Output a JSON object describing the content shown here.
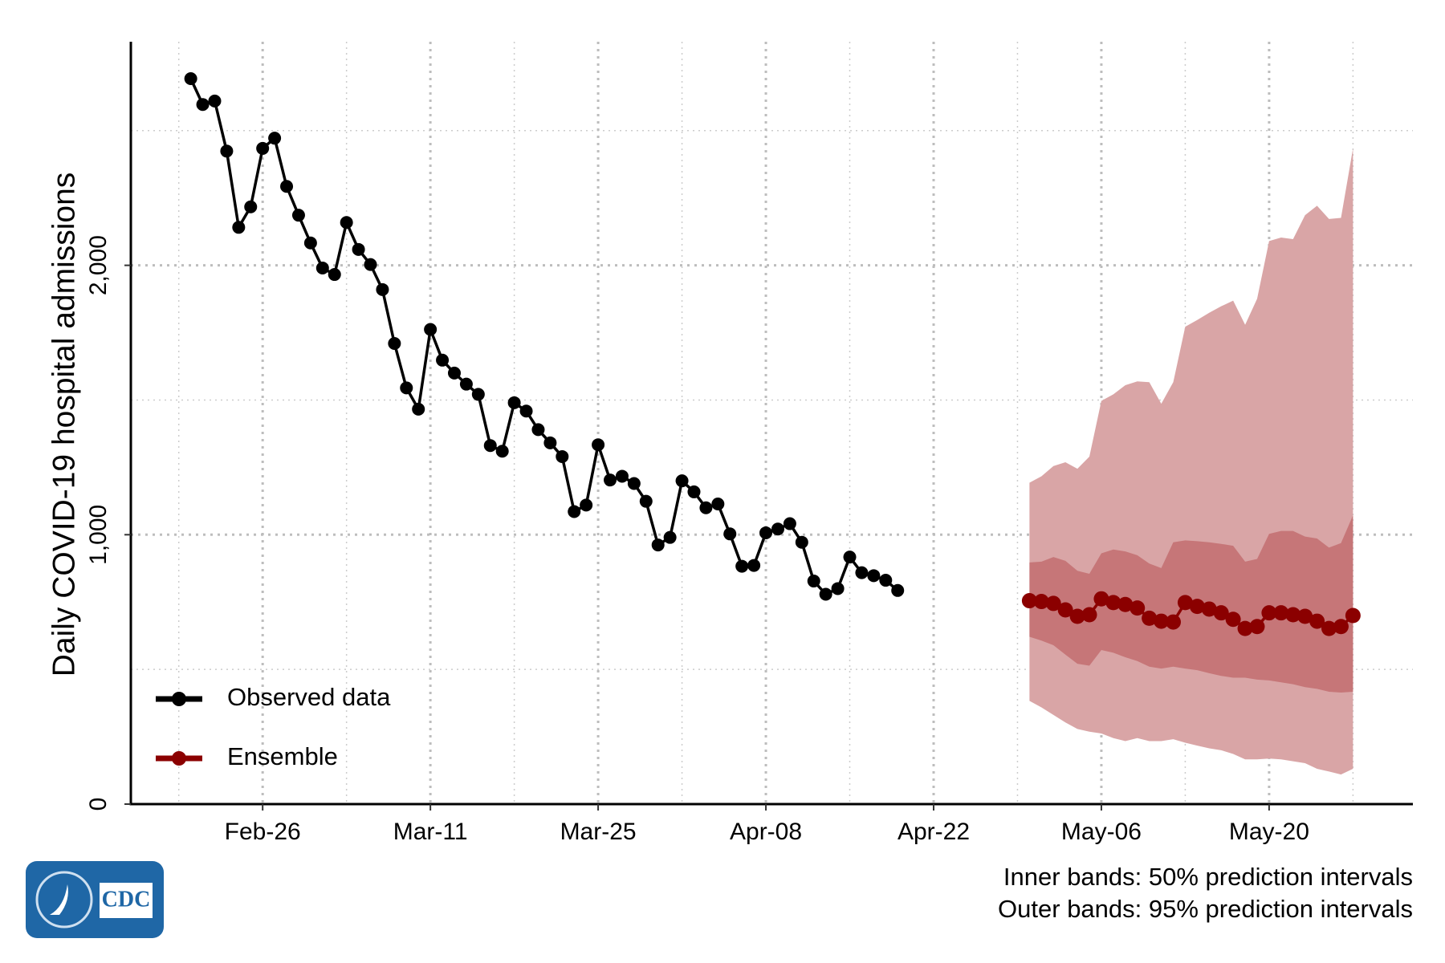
{
  "chart_data": {
    "type": "forecast-line",
    "y_label": "Daily COVID-19 hospital admissions",
    "annotations": [
      "Inner bands: 50% prediction intervals",
      "Outer bands: 95% prediction intervals"
    ],
    "logo": "CDC",
    "xlim": [
      "Feb-15",
      "Jun-01"
    ],
    "xticks": [
      "Feb-26",
      "Mar-11",
      "Mar-25",
      "Apr-08",
      "Apr-22",
      "May-06",
      "May-20"
    ],
    "ylim": [
      0,
      2830
    ],
    "yticks": [
      0,
      {
        "value": 1000,
        "label": "1,000"
      },
      {
        "value": 2000,
        "label": "2,000"
      }
    ],
    "grid": true,
    "legend": "bottom-left",
    "series": [
      {
        "name": "Observed data",
        "color": "#000000",
        "x": [
          "Feb-20",
          "Feb-21",
          "Feb-22",
          "Feb-23",
          "Feb-24",
          "Feb-25",
          "Feb-26",
          "Feb-27",
          "Feb-28",
          "Feb-29",
          "Mar-01",
          "Mar-02",
          "Mar-03",
          "Mar-04",
          "Mar-05",
          "Mar-06",
          "Mar-07",
          "Mar-08",
          "Mar-09",
          "Mar-10",
          "Mar-11",
          "Mar-12",
          "Mar-13",
          "Mar-14",
          "Mar-15",
          "Mar-16",
          "Mar-17",
          "Mar-18",
          "Mar-19",
          "Mar-20",
          "Mar-21",
          "Mar-22",
          "Mar-23",
          "Mar-24",
          "Mar-25",
          "Mar-26",
          "Mar-27",
          "Mar-28",
          "Mar-29",
          "Mar-30",
          "Mar-31",
          "Apr-01",
          "Apr-02",
          "Apr-03",
          "Apr-04",
          "Apr-05",
          "Apr-06",
          "Apr-07",
          "Apr-08",
          "Apr-09",
          "Apr-10",
          "Apr-11",
          "Apr-12",
          "Apr-13",
          "Apr-14",
          "Apr-15",
          "Apr-16",
          "Apr-17",
          "Apr-18",
          "Apr-19"
        ],
        "values": [
          2693,
          2597,
          2610,
          2424,
          2141,
          2217,
          2434,
          2472,
          2293,
          2186,
          2083,
          1990,
          1966,
          2159,
          2059,
          2003,
          1910,
          1710,
          1545,
          1466,
          1762,
          1648,
          1600,
          1559,
          1521,
          1331,
          1310,
          1490,
          1459,
          1390,
          1341,
          1290,
          1086,
          1110,
          1334,
          1203,
          1217,
          1190,
          1124,
          962,
          990,
          1200,
          1159,
          1100,
          1114,
          1003,
          883,
          886,
          1007,
          1021,
          1041,
          972,
          828,
          779,
          800,
          917,
          859,
          848,
          831,
          793
        ]
      },
      {
        "name": "Ensemble",
        "color": "#8b0000",
        "band_colors": [
          "#d9a5a6",
          "#c67678"
        ],
        "x": [
          "Apr-30",
          "May-01",
          "May-02",
          "May-03",
          "May-04",
          "May-05",
          "May-06",
          "May-07",
          "May-08",
          "May-09",
          "May-10",
          "May-11",
          "May-12",
          "May-13",
          "May-14",
          "May-15",
          "May-16",
          "May-17",
          "May-18",
          "May-19",
          "May-20",
          "May-21",
          "May-22",
          "May-23",
          "May-24",
          "May-25",
          "May-26",
          "May-27"
        ],
        "values": [
          755,
          752,
          745,
          721,
          697,
          703,
          762,
          748,
          741,
          728,
          690,
          679,
          676,
          748,
          734,
          724,
          710,
          686,
          652,
          659,
          710,
          710,
          703,
          697,
          679,
          652,
          659,
          700
        ],
        "upper_95": [
          1193,
          1217,
          1255,
          1269,
          1245,
          1290,
          1497,
          1521,
          1555,
          1569,
          1566,
          1486,
          1566,
          1772,
          1797,
          1824,
          1848,
          1869,
          1779,
          1876,
          2090,
          2103,
          2097,
          2186,
          2221,
          2172,
          2176,
          2434
        ],
        "lower_95": [
          383,
          359,
          331,
          303,
          279,
          269,
          262,
          245,
          234,
          245,
          234,
          234,
          241,
          228,
          217,
          207,
          200,
          186,
          166,
          166,
          169,
          166,
          159,
          152,
          131,
          121,
          110,
          131
        ],
        "upper_50": [
          897,
          900,
          917,
          903,
          866,
          855,
          931,
          945,
          938,
          924,
          893,
          876,
          972,
          979,
          976,
          972,
          966,
          959,
          900,
          910,
          1003,
          1014,
          1014,
          993,
          986,
          952,
          969,
          1072
        ],
        "lower_50": [
          621,
          607,
          590,
          555,
          521,
          514,
          572,
          562,
          545,
          531,
          510,
          503,
          510,
          503,
          497,
          486,
          476,
          469,
          469,
          462,
          459,
          452,
          445,
          434,
          428,
          417,
          414,
          417
        ]
      }
    ]
  }
}
